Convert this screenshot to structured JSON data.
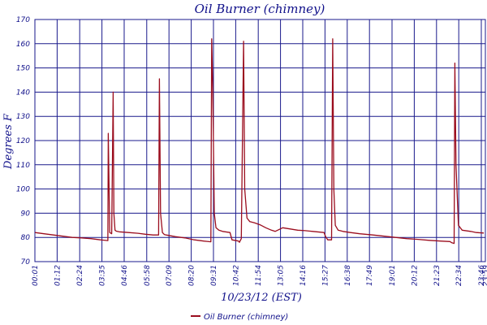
{
  "chart_data": {
    "type": "line",
    "title": "Oil Burner (chimney)",
    "xlabel": "10/23/12 (EST)",
    "ylabel": "Degrees F",
    "ylim": [
      70,
      170
    ],
    "yticks": [
      "70",
      "80",
      "90",
      "100",
      "110",
      "120",
      "130",
      "140",
      "150",
      "160",
      "170"
    ],
    "xticks": [
      "00:01",
      "01:12",
      "02:24",
      "03:35",
      "04:46",
      "05:58",
      "07:09",
      "08:20",
      "09:31",
      "10:42",
      "11:54",
      "13:05",
      "14:16",
      "15:27",
      "16:38",
      "17:49",
      "19:01",
      "20:12",
      "21:23",
      "22:34",
      "23:46",
      "23:59"
    ],
    "grid": true,
    "legend_position": "bottom",
    "color": "#9b0d1e",
    "series": [
      {
        "name": "Oil Burner (chimney)",
        "x": [
          0.02,
          0.5,
          1.0,
          1.5,
          2.0,
          2.5,
          3.0,
          3.5,
          3.9,
          3.92,
          4.0,
          4.1,
          4.18,
          4.22,
          4.28,
          4.35,
          4.5,
          5.0,
          5.5,
          5.9,
          6.3,
          6.6,
          6.64,
          6.7,
          6.8,
          6.9,
          7.0,
          7.5,
          8.0,
          8.5,
          9.0,
          9.38,
          9.42,
          9.48,
          9.52,
          9.56,
          9.65,
          9.8,
          10.0,
          10.4,
          10.5,
          10.85,
          10.9,
          11.0,
          11.12,
          11.18,
          11.3,
          11.45,
          11.7,
          12.0,
          12.3,
          12.6,
          12.8,
          13.2,
          13.6,
          14.0,
          14.4,
          14.8,
          15.4,
          15.5,
          15.6,
          15.8,
          15.86,
          15.92,
          16.0,
          16.15,
          16.4,
          16.8,
          17.3,
          18.0,
          18.6,
          19.2,
          19.8,
          20.4,
          21.0,
          21.6,
          22.1,
          22.2,
          22.32,
          22.36,
          22.42,
          22.55,
          22.75,
          23.2,
          23.5,
          23.9
        ],
        "values": [
          82,
          81.5,
          81,
          80.5,
          80,
          79.8,
          79.5,
          79,
          78.7,
          123,
          82,
          81.5,
          140,
          90,
          83,
          82.6,
          82.3,
          82,
          81.7,
          81.3,
          81,
          81,
          145.5,
          90,
          82,
          81.2,
          81,
          80.3,
          79.8,
          79,
          78.5,
          78.2,
          162,
          142,
          115,
          90,
          84,
          83,
          82.5,
          82,
          79,
          78.5,
          78,
          79.5,
          161,
          100,
          88,
          86.5,
          86,
          85.2,
          84,
          83,
          82.5,
          84,
          83.5,
          83,
          82.8,
          82.5,
          82,
          80,
          79,
          79,
          162,
          100,
          85,
          83,
          82.5,
          82,
          81.5,
          81,
          80.5,
          80,
          79.5,
          79.2,
          78.8,
          78.5,
          78.3,
          77.8,
          77.5,
          152,
          110,
          85,
          83,
          82.5,
          82,
          81.8
        ]
      }
    ]
  }
}
